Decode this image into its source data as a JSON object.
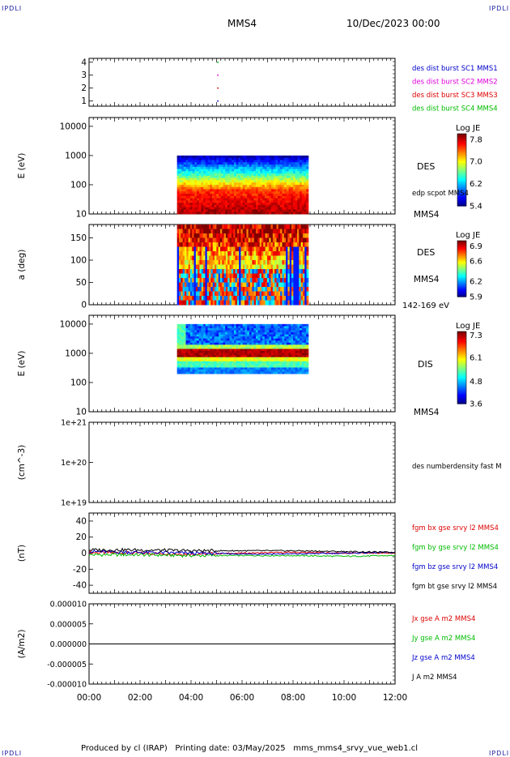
{
  "header": {
    "corner_label": "IPDLI",
    "title": "MMS4",
    "date": "10/Dec/2023 00:00"
  },
  "footer": {
    "produced": "Produced by cl (IRAP)",
    "printing": "Printing date: 03/May/2025",
    "file": "mms_mms4_srvy_vue_web1.cl"
  },
  "time_axis": {
    "ticks": [
      "00:00",
      "02:00",
      "04:00",
      "06:00",
      "08:00",
      "10:00",
      "12:00"
    ],
    "start_hour": 0,
    "end_hour": 12
  },
  "colors": {
    "blue": "#0000cc",
    "magenta": "#dd00dd",
    "red": "#dd0000",
    "green": "#00bb00",
    "black": "#000000"
  },
  "chart_data": [
    {
      "type": "scatter",
      "id": "burst",
      "yticks": [
        "1",
        "2",
        "3",
        "4"
      ],
      "ylim": [
        0.6,
        4.3
      ],
      "legend": [
        {
          "name": "des dist burst SC1 MMS1",
          "color": "#0000cc"
        },
        {
          "name": "des dist burst SC2 MMS2",
          "color": "#dd00dd"
        },
        {
          "name": "des dist burst SC3 MMS3",
          "color": "#dd0000"
        },
        {
          "name": "des dist burst SC4 MMS4",
          "color": "#00bb00"
        }
      ],
      "points": [
        {
          "x": 5.05,
          "y": 4,
          "color": "#00bb00"
        },
        {
          "x": 5.05,
          "y": 3,
          "color": "#dd00dd"
        },
        {
          "x": 5.05,
          "y": 2,
          "color": "#dd0000"
        },
        {
          "x": 5.05,
          "y": 1,
          "color": "#0000cc"
        }
      ]
    },
    {
      "type": "heatmap",
      "id": "des-energy",
      "ylabel": "E (eV)",
      "yticks": [
        "10",
        "100",
        "1000",
        "10000"
      ],
      "ylim": [
        10,
        20000
      ],
      "x_range": [
        3.45,
        8.6
      ],
      "y_range": [
        10,
        1000
      ],
      "right_labels": [
        "DES",
        "edp scpot MMS4",
        "MMS4"
      ],
      "colorbar": {
        "title": "Log JE",
        "ticks": [
          "7.8",
          "7.0",
          "6.2",
          "5.4"
        ],
        "min": 5.4,
        "max": 8.0
      }
    },
    {
      "type": "heatmap",
      "id": "des-pitch",
      "ylabel": "a (deg)",
      "yticks": [
        "0",
        "50",
        "100",
        "150"
      ],
      "ylim": [
        0,
        180
      ],
      "x_range": [
        3.45,
        8.6
      ],
      "y_range": [
        0,
        180
      ],
      "right_labels": [
        "DES",
        "MMS4",
        "142-169 eV"
      ],
      "colorbar": {
        "title": "Log JE",
        "ticks": [
          "6.9",
          "6.6",
          "6.2",
          "5.9"
        ],
        "min": 5.9,
        "max": 7.0
      }
    },
    {
      "type": "heatmap",
      "id": "dis-energy",
      "ylabel": "E (eV)",
      "yticks": [
        "10",
        "100",
        "1000",
        "10000"
      ],
      "ylim": [
        10,
        20000
      ],
      "x_range": [
        3.45,
        8.6
      ],
      "y_range": [
        200,
        10000
      ],
      "right_labels": [
        "DIS",
        "MMS4"
      ],
      "colorbar": {
        "title": "Log JE",
        "ticks": [
          "7.3",
          "6.1",
          "4.8",
          "3.6"
        ],
        "min": 3.6,
        "max": 7.5
      }
    },
    {
      "type": "line",
      "id": "density",
      "ylabel": "(cm^-3)",
      "yticks": [
        "1e+19",
        "1e+20",
        "1e+21"
      ],
      "ylim": [
        1e+19,
        1e+21
      ],
      "legend": [
        {
          "name": "des numberdensity fast M",
          "color": "#000000"
        }
      ],
      "series": []
    },
    {
      "type": "line",
      "id": "fgm",
      "ylabel": "(nT)",
      "yticks": [
        "-40",
        "-20",
        "0",
        "20",
        "40"
      ],
      "ylim": [
        -50,
        50
      ],
      "legend": [
        {
          "name": "fgm bx gse srvy l2 MMS4",
          "color": "#dd0000"
        },
        {
          "name": "fgm by gse srvy l2 MMS4",
          "color": "#00bb00"
        },
        {
          "name": "fgm bz gse srvy l2 MMS4",
          "color": "#0000cc"
        },
        {
          "name": "fgm bt gse srvy l2 MMS4",
          "color": "#000000"
        }
      ],
      "series": [
        {
          "name": "bx",
          "color": "#dd0000",
          "x": [
            0,
            2,
            4,
            6,
            8,
            10,
            12
          ],
          "y": [
            1,
            0,
            -1,
            0,
            1,
            0,
            0
          ]
        },
        {
          "name": "by",
          "color": "#00bb00",
          "x": [
            0,
            2,
            4,
            6,
            8,
            10,
            12
          ],
          "y": [
            -2,
            -2,
            -3,
            -3,
            -3,
            -4,
            -3
          ]
        },
        {
          "name": "bz",
          "color": "#0000cc",
          "x": [
            0,
            2,
            4,
            6,
            8,
            10,
            12
          ],
          "y": [
            2,
            1,
            0,
            -1,
            -1,
            0,
            1
          ]
        },
        {
          "name": "bt",
          "color": "#000000",
          "x": [
            0,
            2,
            4,
            6,
            8,
            10,
            12
          ],
          "y": [
            4,
            4,
            3,
            3,
            3,
            2,
            1
          ]
        }
      ]
    },
    {
      "type": "line",
      "id": "current",
      "ylabel": "(A/m2)",
      "yticks": [
        "-0.000010",
        "-0.000005",
        "0.000000",
        "0.000005",
        "0.000010"
      ],
      "ylim": [
        -1e-05,
        1e-05
      ],
      "legend": [
        {
          "name": "Jx gse A m2 MMS4",
          "color": "#dd0000"
        },
        {
          "name": "Jy gse A m2 MMS4",
          "color": "#00bb00"
        },
        {
          "name": "Jz gse A m2 MMS4",
          "color": "#0000cc"
        },
        {
          "name": "J A m2 MMS4",
          "color": "#000000"
        }
      ],
      "series": [
        {
          "name": "J",
          "color": "#000000",
          "x": [
            0,
            12
          ],
          "y": [
            0,
            0
          ]
        }
      ]
    }
  ]
}
